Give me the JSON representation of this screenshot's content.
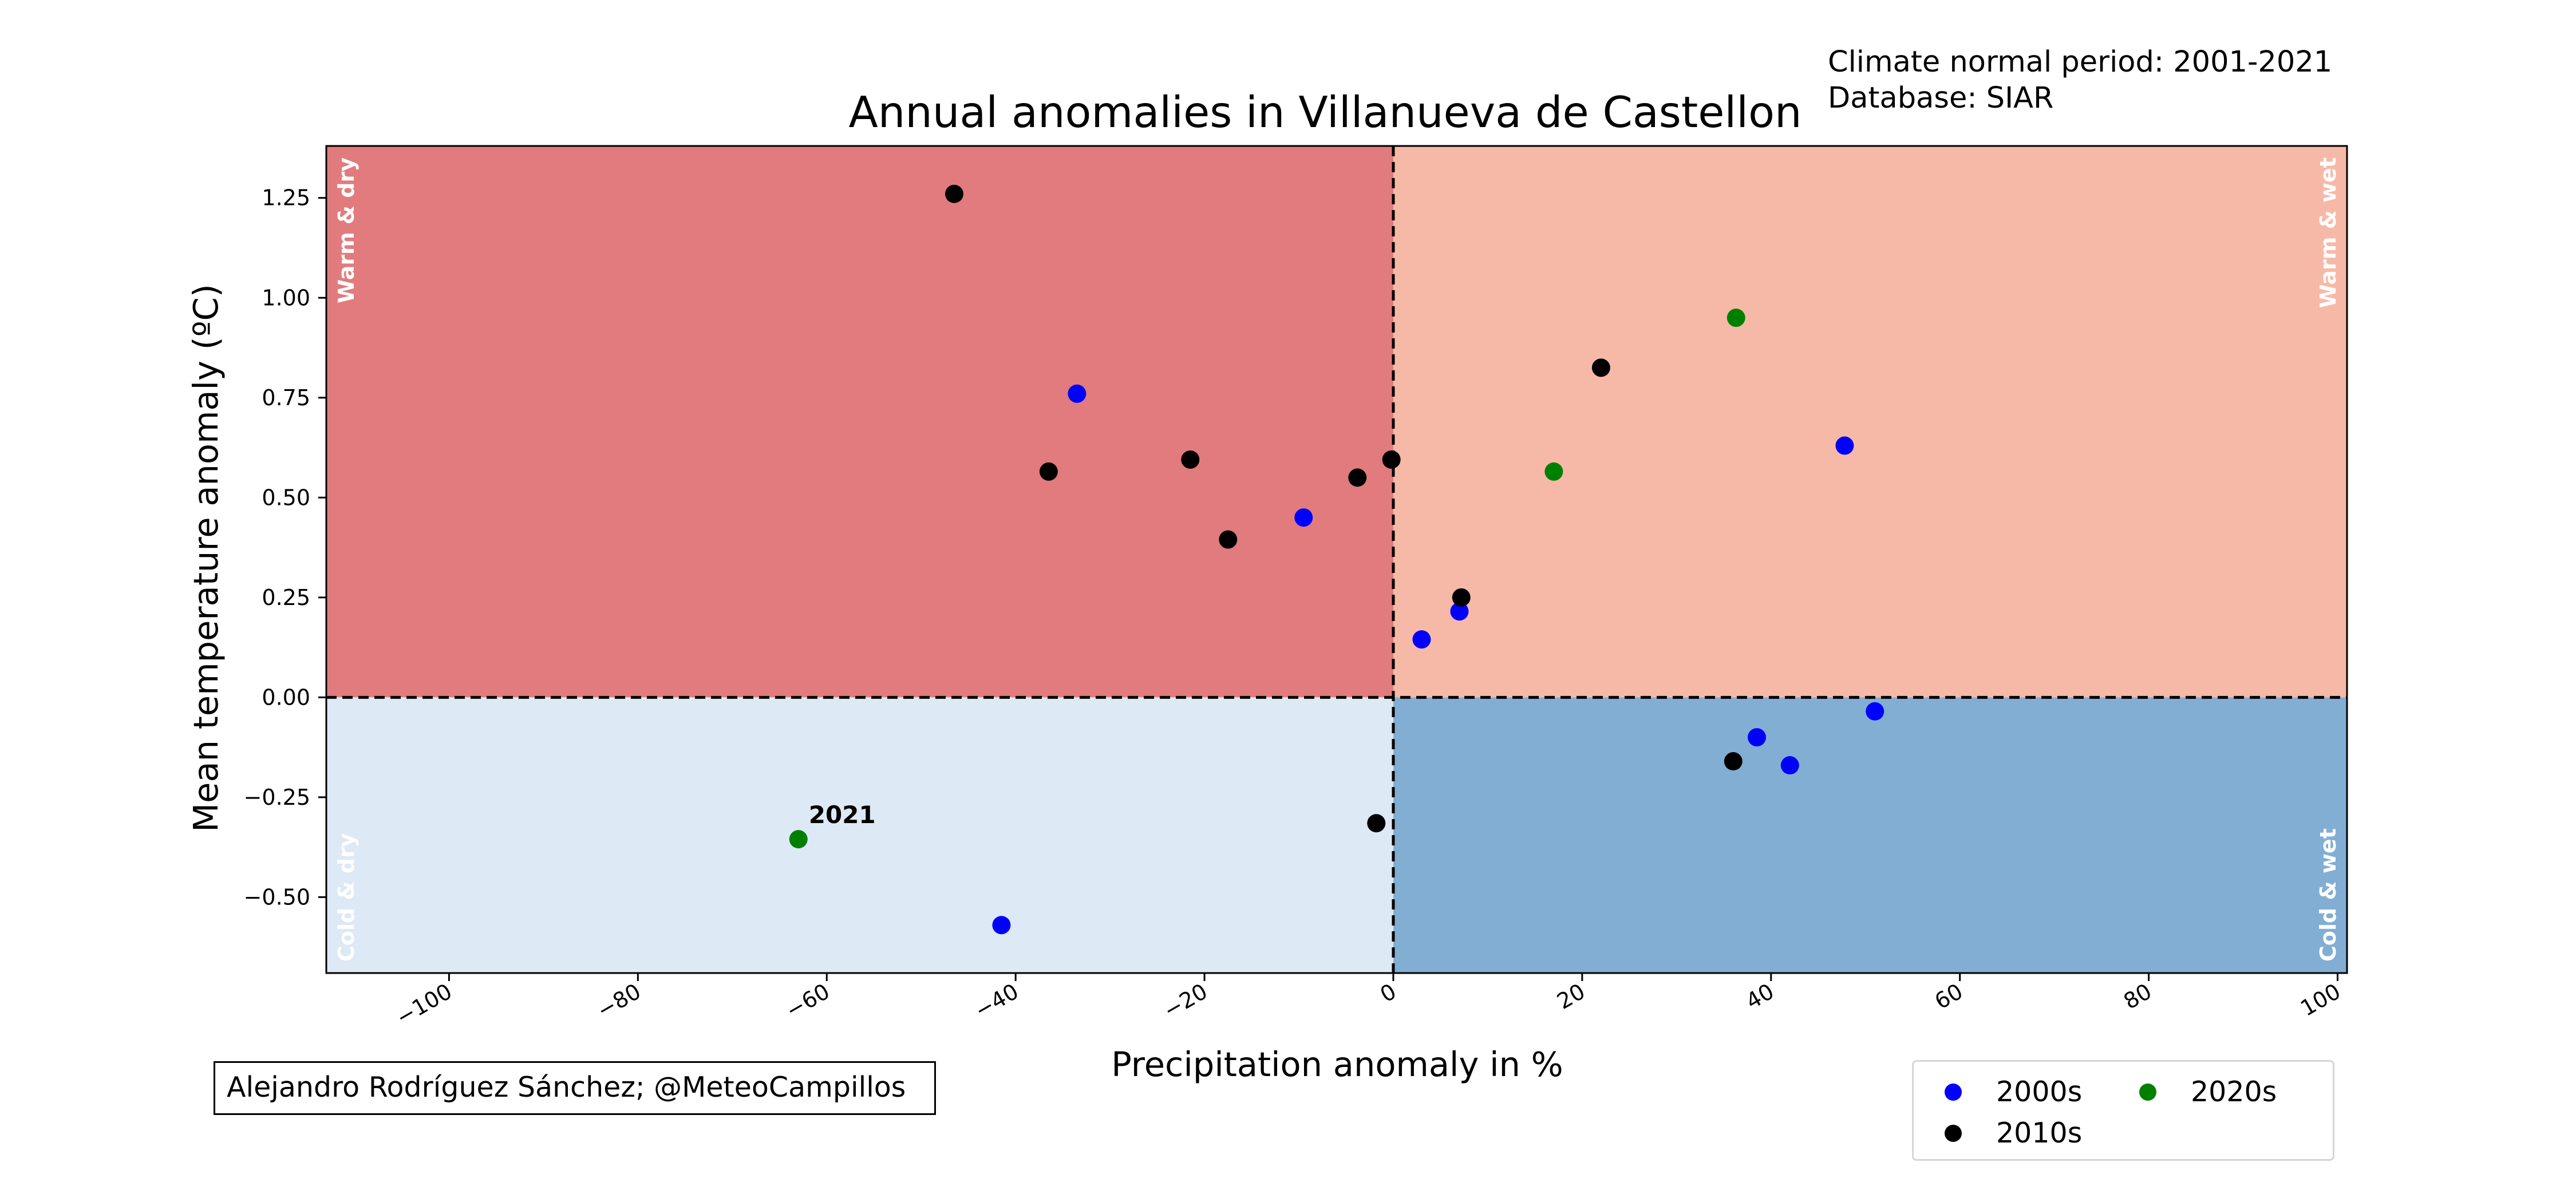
{
  "header": {
    "normal_period": "Climate normal period: 2001-2021",
    "database": "Database: SIAR"
  },
  "signature": "Alejandro Rodríguez Sánchez; @MeteoCampillos",
  "chart_data": {
    "type": "scatter",
    "title": "Annual anomalies in Villanueva de Castellon",
    "xlabel": "Precipitation anomaly in %",
    "ylabel": "Mean temperature anomaly (ºC)",
    "xlim": [
      -113,
      101
    ],
    "ylim": [
      -0.69,
      1.38
    ],
    "xticks": [
      -100,
      -80,
      -60,
      -40,
      -20,
      0,
      20,
      40,
      60,
      80,
      100
    ],
    "xtick_labels": [
      "−100",
      "−80",
      "−60",
      "−40",
      "−20",
      "0",
      "20",
      "40",
      "60",
      "80",
      "100"
    ],
    "yticks": [
      -0.5,
      -0.25,
      0.0,
      0.25,
      0.5,
      0.75,
      1.0,
      1.25
    ],
    "ytick_labels": [
      "−0.50",
      "−0.25",
      "0.00",
      "0.25",
      "0.50",
      "0.75",
      "1.00",
      "1.25"
    ],
    "quadrants": [
      {
        "name": "Warm & dry",
        "color": "#e27b7d",
        "xrange": [
          -113,
          0
        ],
        "yrange": [
          0,
          1.38
        ]
      },
      {
        "name": "Warm & wet",
        "color": "#f7b9a7",
        "xrange": [
          0,
          101
        ],
        "yrange": [
          0,
          1.38
        ]
      },
      {
        "name": "Cold & dry",
        "color": "#dde9f5",
        "xrange": [
          -113,
          0
        ],
        "yrange": [
          -0.69,
          0
        ]
      },
      {
        "name": "Cold & wet",
        "color": "#82aed4",
        "xrange": [
          0,
          101
        ],
        "yrange": [
          -0.69,
          0
        ]
      }
    ],
    "series": [
      {
        "name": "2000s",
        "color": "#0000ff",
        "points": [
          [
            -33.5,
            0.76
          ],
          [
            -9.5,
            0.45
          ],
          [
            47.8,
            0.63
          ],
          [
            3,
            0.145
          ],
          [
            7,
            0.215
          ],
          [
            38.5,
            -0.1
          ],
          [
            42,
            -0.17
          ],
          [
            51,
            -0.035
          ],
          [
            -41.5,
            -0.57
          ]
        ]
      },
      {
        "name": "2010s",
        "color": "#000000",
        "points": [
          [
            -46.5,
            1.26
          ],
          [
            -36.5,
            0.565
          ],
          [
            -21.5,
            0.595
          ],
          [
            -17.5,
            0.395
          ],
          [
            -3.8,
            0.55
          ],
          [
            -0.2,
            0.595
          ],
          [
            7.2,
            0.25
          ],
          [
            22,
            0.825
          ],
          [
            36,
            -0.16
          ],
          [
            -1.8,
            -0.315
          ]
        ]
      },
      {
        "name": "2020s",
        "color": "#008000",
        "points": [
          [
            17,
            0.565
          ],
          [
            36.3,
            0.95
          ],
          [
            -63,
            -0.355
          ]
        ]
      }
    ],
    "annotations": [
      {
        "text": "2021",
        "x": -63,
        "y": -0.355
      }
    ],
    "reference_lines": {
      "x": 0,
      "y": 0,
      "style": "dashed"
    },
    "legend_position": "lower-right"
  }
}
